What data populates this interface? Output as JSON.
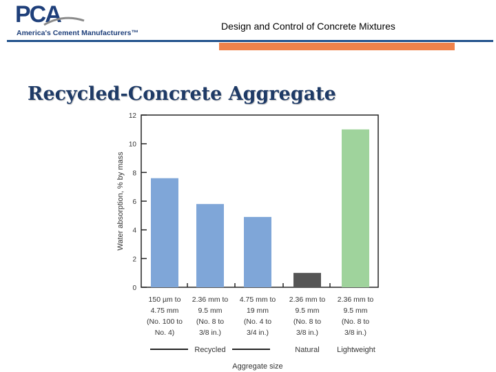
{
  "header": {
    "logo_name": "PCA",
    "logo_tagline": "America's Cement Manufacturers™",
    "title": "Design and Control of Concrete Mixtures"
  },
  "slide": {
    "title": "Recycled-Concrete Aggregate"
  },
  "colors": {
    "recycled": "#7fa6d8",
    "natural": "#555555",
    "lightweight": "#9fd39c",
    "accent_blue": "#1e4f8a",
    "accent_orange": "#f0824a"
  },
  "chart_data": {
    "type": "bar",
    "title": "",
    "xlabel": "Aggregate size",
    "ylabel": "Water absorption, % by mass",
    "ylim": [
      0,
      12
    ],
    "yticks": [
      "0",
      "2",
      "4",
      "6",
      "8",
      "10",
      "12"
    ],
    "categories": [
      [
        "150 µm to",
        "4.75 mm",
        "(No. 100 to",
        "No. 4)"
      ],
      [
        "2.36 mm to",
        "9.5 mm",
        "(No. 8 to",
        "3/8 in.)"
      ],
      [
        "4.75 mm to",
        "19 mm",
        "(No. 4 to",
        "3/4 in.)"
      ],
      [
        "2.36 mm to",
        "9.5 mm",
        "(No. 8 to",
        "3/8 in.)"
      ],
      [
        "2.36 mm to",
        "9.5 mm",
        "(No. 8 to",
        "3/8 in.)"
      ]
    ],
    "values": [
      7.6,
      5.8,
      4.9,
      1.0,
      11.0
    ],
    "groups": [
      "recycled",
      "recycled",
      "recycled",
      "natural",
      "lightweight"
    ],
    "group_labels": {
      "recycled": "Recycled",
      "natural": "Natural",
      "lightweight": "Lightweight"
    }
  }
}
